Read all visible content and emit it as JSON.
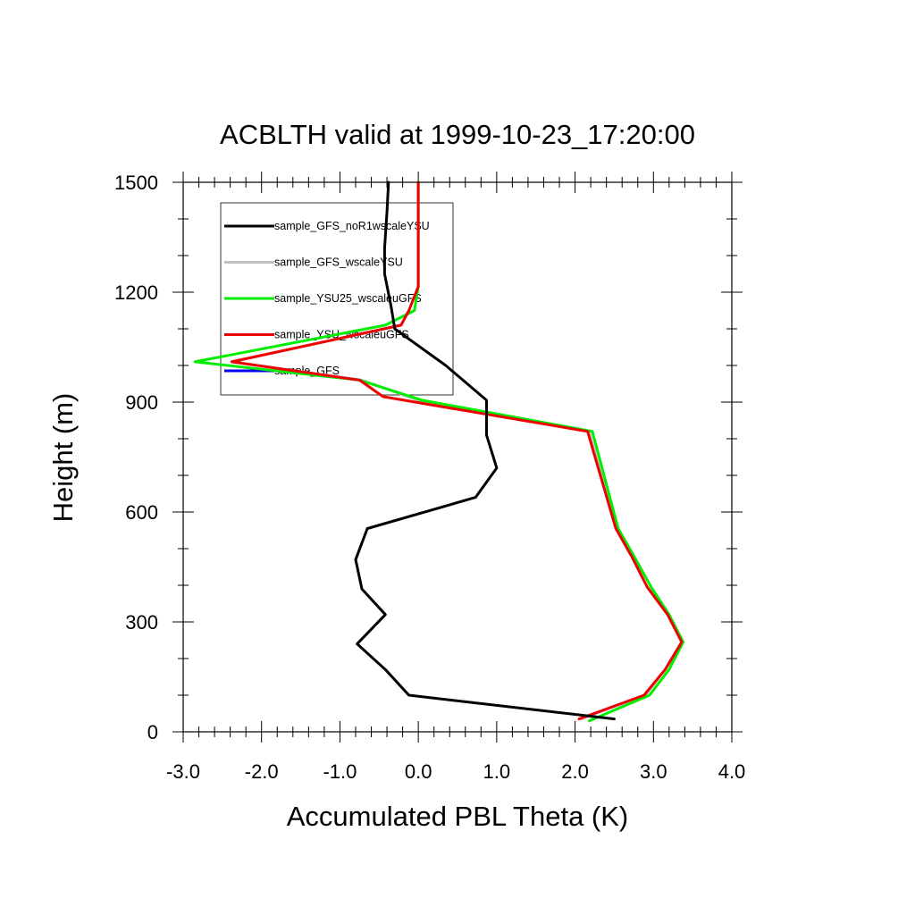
{
  "chart_data": {
    "type": "line",
    "title": "ACBLTH valid at 1999-10-23_17:20:00",
    "xlabel": "Accumulated PBL Theta (K)",
    "ylabel": "Height (m)",
    "xlim": [
      -3.0,
      4.0
    ],
    "ylim": [
      0,
      1500
    ],
    "xticks": [
      -3.0,
      -2.0,
      -1.0,
      0.0,
      1.0,
      2.0,
      3.0,
      4.0
    ],
    "xtick_labels": [
      "-3.0",
      "-2.0",
      "-1.0",
      "0.0",
      "1.0",
      "2.0",
      "3.0",
      "4.0"
    ],
    "yticks": [
      0,
      300,
      600,
      900,
      1200,
      1500
    ],
    "ytick_labels": [
      "0",
      "300",
      "600",
      "900",
      "1200",
      "1500"
    ],
    "grid": false,
    "legend": "top-left, boxed",
    "series": [
      {
        "name": "sample_GFS_noR1wscaleYSU",
        "color": "#000000",
        "x": [
          2.5,
          -0.12,
          -0.42,
          -0.78,
          -0.42,
          -0.72,
          -0.8,
          -0.65,
          0.73,
          1.0,
          0.87,
          0.87,
          0.35,
          -0.3,
          -0.35,
          -0.43,
          -0.43,
          -0.4,
          -0.38
        ],
        "y": [
          35,
          100,
          170,
          240,
          320,
          390,
          470,
          555,
          640,
          720,
          810,
          905,
          1000,
          1100,
          1165,
          1250,
          1320,
          1420,
          1500
        ]
      },
      {
        "name": "sample_GFS_wscaleYSU",
        "color": "#c0c0c0",
        "x": [
          2.08,
          2.9,
          3.15,
          3.36,
          3.2,
          2.92,
          2.72,
          2.52,
          2.18,
          0.0,
          -0.72,
          -2.38,
          -0.22,
          -0.12,
          0.0,
          0.0,
          0.0
        ],
        "y": [
          35,
          100,
          170,
          245,
          320,
          395,
          480,
          555,
          820,
          905,
          960,
          1010,
          1110,
          1150,
          1215,
          1330,
          1500
        ]
      },
      {
        "name": "sample_YSU25_wscaleuGFS",
        "color": "#00ee00",
        "x": [
          2.18,
          2.95,
          3.2,
          3.38,
          3.2,
          2.97,
          2.75,
          2.55,
          2.22,
          0.05,
          -0.75,
          -2.85,
          -0.42,
          -0.05,
          0.0,
          0.0,
          0.0
        ],
        "y": [
          30,
          100,
          170,
          245,
          320,
          395,
          480,
          555,
          820,
          905,
          960,
          1010,
          1110,
          1150,
          1215,
          1330,
          1500
        ]
      },
      {
        "name": "sample_YSU_wscaleuGFS",
        "color": "#ee0000",
        "x": [
          2.05,
          2.88,
          3.15,
          3.36,
          3.18,
          2.92,
          2.72,
          2.52,
          2.16,
          -0.45,
          -0.75,
          -2.38,
          -0.22,
          -0.12,
          0.0,
          0.0,
          0.0
        ],
        "y": [
          35,
          100,
          170,
          245,
          320,
          395,
          480,
          555,
          820,
          915,
          960,
          1010,
          1110,
          1150,
          1215,
          1330,
          1500
        ]
      },
      {
        "name": "sample_GFS",
        "color": "#0000ee",
        "x": [],
        "y": []
      }
    ]
  }
}
